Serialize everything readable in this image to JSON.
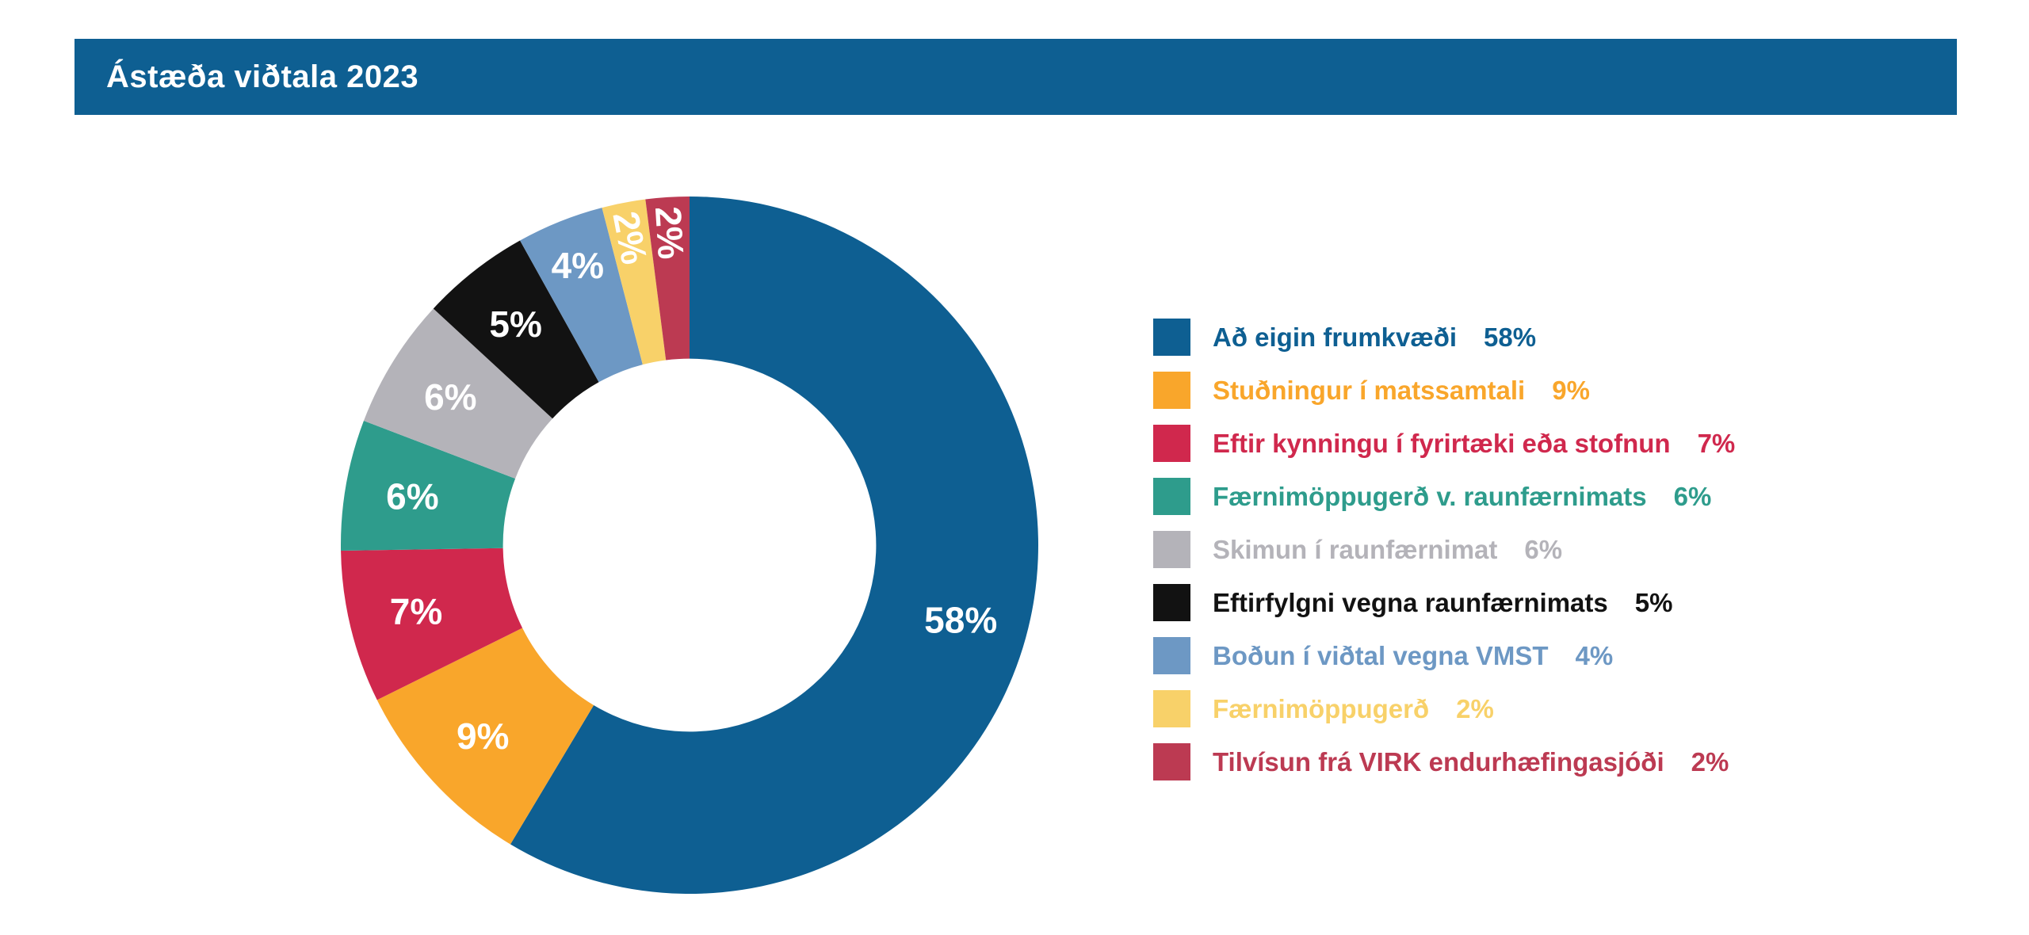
{
  "title_bar": {
    "title": "Ástæða viðtala 2023",
    "background": "#0E5F92",
    "text_color": "#FFFFFF"
  },
  "chart_data": {
    "type": "pie",
    "subtype": "donut",
    "title": "Ástæða viðtala 2023",
    "donut_hole_ratio": 0.535,
    "start_angle_deg": 0,
    "direction": "clockwise",
    "legend_position": "right",
    "data_label_color": "#FFFFFF",
    "categories": [
      "Að eigin frumkvæði",
      "Stuðningur í matssamtali",
      "Eftir kynningu í fyrirtæki eða stofnun",
      "Færnimöppugerð v. raunfærnimats",
      "Skimun í raunfærnimat",
      "Eftirfylgni vegna raunfærnimats",
      "Boðun í viðtal vegna VMST",
      "Færnimöppugerð",
      "Tilvísun frá VIRK endurhæfingasjóði"
    ],
    "values": [
      58,
      9,
      7,
      6,
      6,
      5,
      4,
      2,
      2
    ],
    "slice_labels": [
      "58%",
      "9%",
      "7%",
      "6%",
      "6%",
      "5%",
      "4%",
      "2%",
      "2%"
    ],
    "colors": [
      "#0E5F92",
      "#F9A62B",
      "#D0284D",
      "#2E9C8C",
      "#B4B3B9",
      "#121212",
      "#6D98C4",
      "#F8D169",
      "#BC3A52"
    ]
  }
}
